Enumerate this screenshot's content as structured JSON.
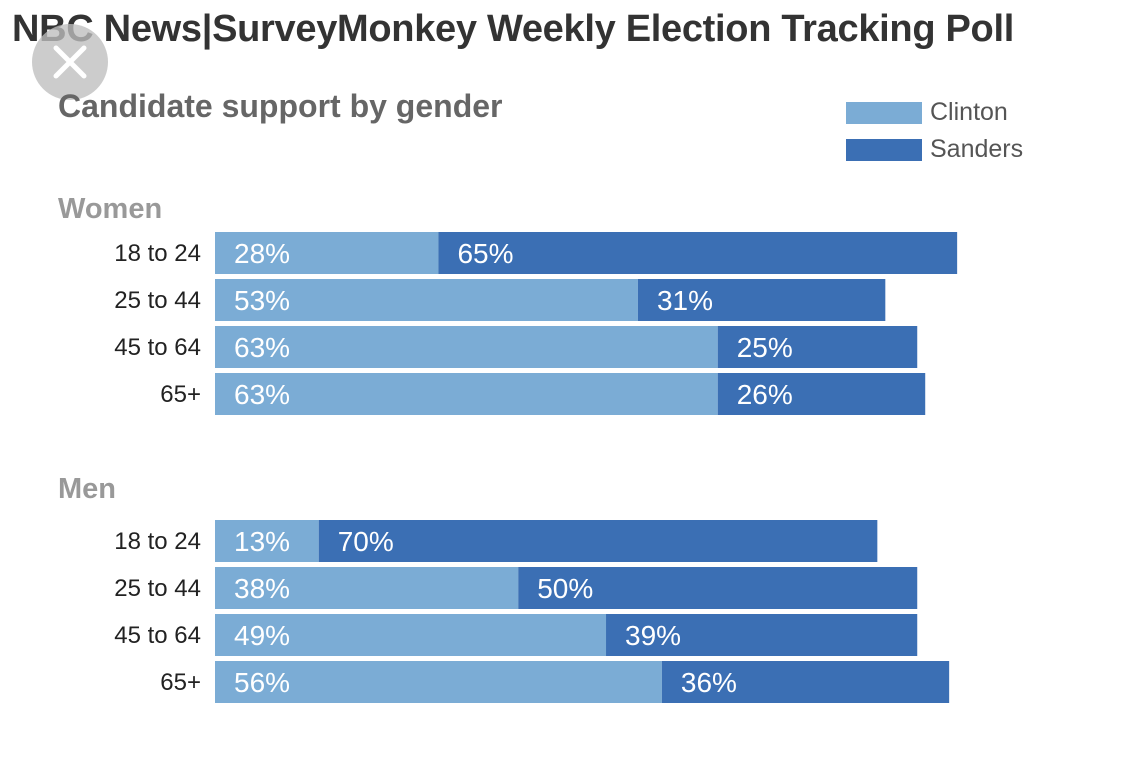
{
  "header": {
    "title": "NBC News|SurveyMonkey Weekly Election Tracking Poll",
    "close_icon": "close-icon"
  },
  "chart_data": {
    "type": "bar",
    "orientation": "horizontal",
    "stacked": true,
    "title": "NBC News|SurveyMonkey Weekly Election Tracking Poll",
    "subtitle": "Candidate support by gender",
    "legend_position": "top-right",
    "grid": false,
    "xlim": [
      0,
      100
    ],
    "value_suffix": "%",
    "colors": {
      "Clinton": "#7bacd5",
      "Sanders": "#3b6fb4"
    },
    "legend": [
      "Clinton",
      "Sanders"
    ],
    "groups": [
      {
        "name": "Women",
        "categories": [
          "18 to 24",
          "25 to 44",
          "45 to 64",
          "65+"
        ],
        "series": [
          {
            "name": "Clinton",
            "values": [
              28,
              53,
              63,
              63
            ]
          },
          {
            "name": "Sanders",
            "values": [
              65,
              31,
              25,
              26
            ]
          }
        ]
      },
      {
        "name": "Men",
        "categories": [
          "18 to 24",
          "25 to 44",
          "45 to 64",
          "65+"
        ],
        "series": [
          {
            "name": "Clinton",
            "values": [
              13,
              38,
              49,
              56
            ]
          },
          {
            "name": "Sanders",
            "values": [
              70,
              50,
              39,
              36
            ]
          }
        ]
      }
    ]
  }
}
